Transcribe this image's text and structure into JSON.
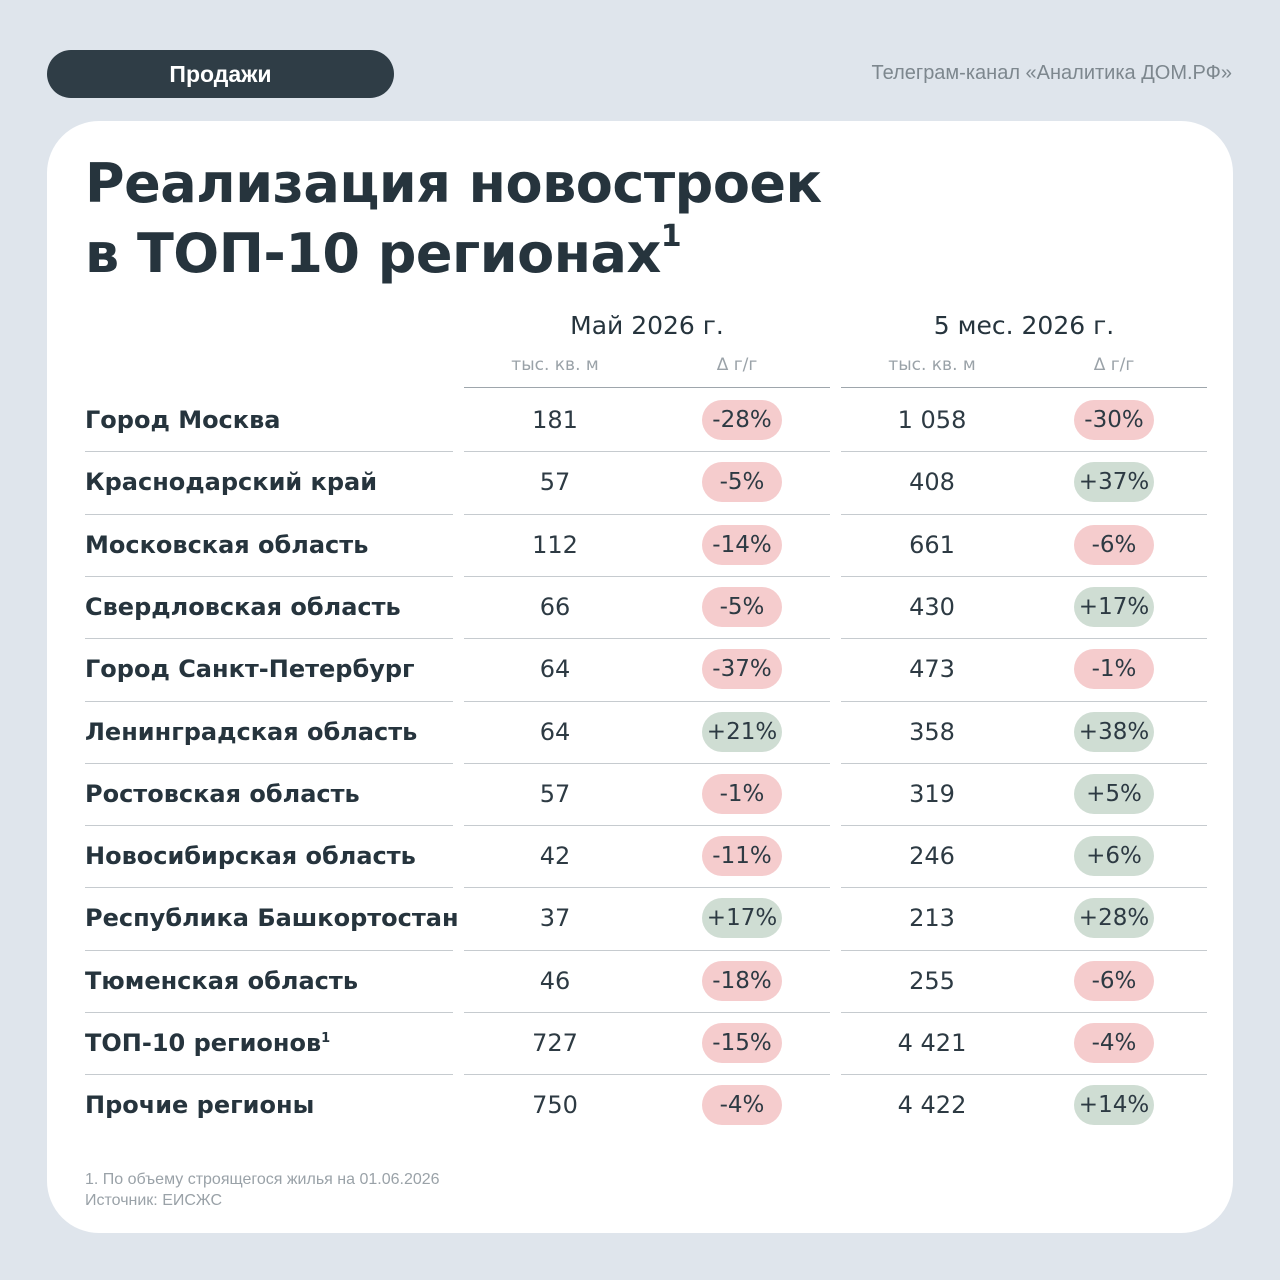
{
  "header": {
    "tag": "Продажи",
    "channel": "Телеграм-канал «Аналитика ДОМ.РФ»"
  },
  "title": {
    "line1": "Реализация новостроек",
    "line2": "в ТОП-10 регионах",
    "note_mark": "1"
  },
  "table": {
    "periods": [
      {
        "label": "Май 2026 г.",
        "unit": "тыс. кв. м",
        "delta": "Δ г/г"
      },
      {
        "label": "5 мес. 2026 г.",
        "unit": "тыс. кв. м",
        "delta": "Δ г/г"
      }
    ],
    "rows": [
      {
        "name": "Город Москва",
        "mark": "",
        "may": "181",
        "may_delta": "-28%",
        "ytd": "1 058",
        "ytd_delta": "-30%"
      },
      {
        "name": "Краснодарский край",
        "mark": "",
        "may": "57",
        "may_delta": "-5%",
        "ytd": "408",
        "ytd_delta": "+37%"
      },
      {
        "name": "Московская область",
        "mark": "",
        "may": "112",
        "may_delta": "-14%",
        "ytd": "661",
        "ytd_delta": "-6%"
      },
      {
        "name": "Свердловская область",
        "mark": "",
        "may": "66",
        "may_delta": "-5%",
        "ytd": "430",
        "ytd_delta": "+17%"
      },
      {
        "name": "Город Санкт-Петербург",
        "mark": "",
        "may": "64",
        "may_delta": "-37%",
        "ytd": "473",
        "ytd_delta": "-1%"
      },
      {
        "name": "Ленинградская область",
        "mark": "",
        "may": "64",
        "may_delta": "+21%",
        "ytd": "358",
        "ytd_delta": "+38%"
      },
      {
        "name": "Ростовская область",
        "mark": "",
        "may": "57",
        "may_delta": "-1%",
        "ytd": "319",
        "ytd_delta": "+5%"
      },
      {
        "name": "Новосибирская область",
        "mark": "",
        "may": "42",
        "may_delta": "-11%",
        "ytd": "246",
        "ytd_delta": "+6%"
      },
      {
        "name": "Республика Башкортостан",
        "mark": "",
        "may": "37",
        "may_delta": "+17%",
        "ytd": "213",
        "ytd_delta": "+28%"
      },
      {
        "name": "Тюменская область",
        "mark": "",
        "may": "46",
        "may_delta": "-18%",
        "ytd": "255",
        "ytd_delta": "-6%"
      },
      {
        "name": "ТОП-10 регионов",
        "mark": "1",
        "may": "727",
        "may_delta": "-15%",
        "ytd": "4 421",
        "ytd_delta": "-4%"
      },
      {
        "name": "Прочие регионы",
        "mark": "",
        "may": "750",
        "may_delta": "-4%",
        "ytd": "4 422",
        "ytd_delta": "+14%"
      }
    ]
  },
  "colors": {
    "negative_badge": "#f5cccd",
    "positive_badge": "#cfddd3",
    "tag_background": "#2f3d46"
  },
  "footnotes": {
    "note": "1. По объему строящегося жилья на 01.06.2026",
    "source": "Источник: ЕИСЖС"
  }
}
